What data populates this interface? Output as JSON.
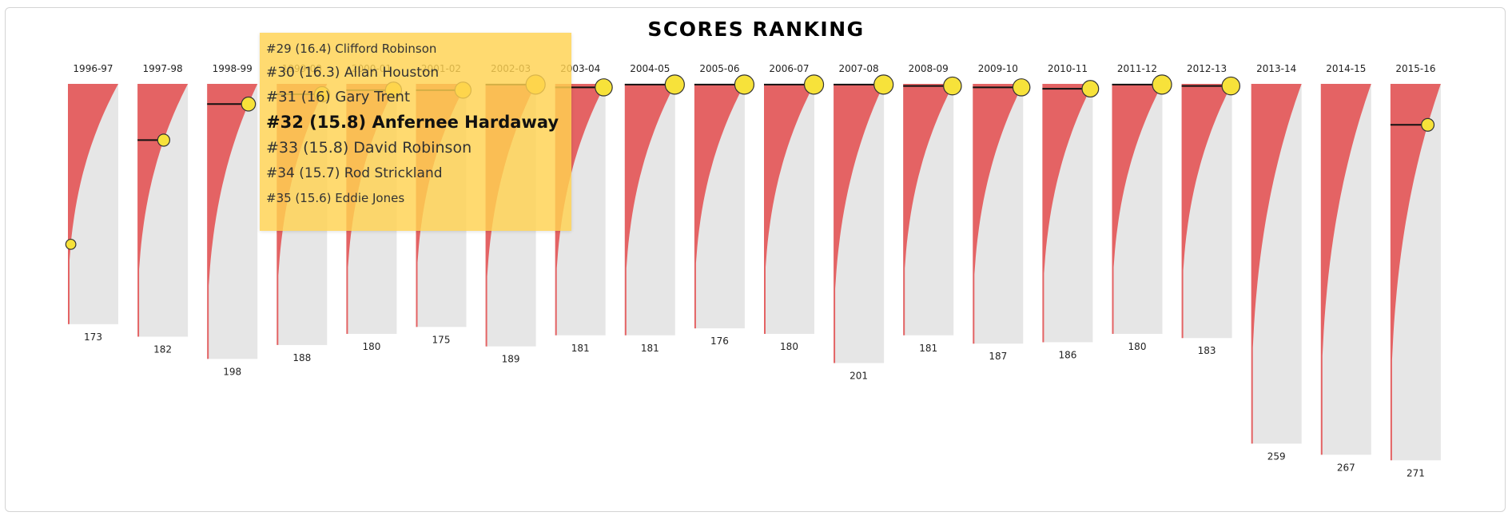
{
  "chart_data": {
    "type": "bar",
    "title": "SCORES RANKING",
    "colors": {
      "fill": "#e46364",
      "background": "#e6e6e6",
      "highlight": "#f7e23a",
      "highlight_stroke": "#333333"
    },
    "seasons": [
      {
        "label": "1996-97",
        "count": "173",
        "rank": 116
      },
      {
        "label": "1997-98",
        "count": "182",
        "rank": 41
      },
      {
        "label": "1998-99",
        "count": "198",
        "rank": 15
      },
      {
        "label": "1999-00",
        "count": "188",
        "rank": 8
      },
      {
        "label": "2000-01",
        "count": "180",
        "rank": 5
      },
      {
        "label": "2001-02",
        "count": "175",
        "rank": 5
      },
      {
        "label": "2002-03",
        "count": "189",
        "rank": 1
      },
      {
        "label": "2003-04",
        "count": "181",
        "rank": 3
      },
      {
        "label": "2004-05",
        "count": "181",
        "rank": 1
      },
      {
        "label": "2005-06",
        "count": "176",
        "rank": 1
      },
      {
        "label": "2006-07",
        "count": "180",
        "rank": 1
      },
      {
        "label": "2007-08",
        "count": "201",
        "rank": 1
      },
      {
        "label": "2008-09",
        "count": "181",
        "rank": 2
      },
      {
        "label": "2009-10",
        "count": "187",
        "rank": 3
      },
      {
        "label": "2010-11",
        "count": "186",
        "rank": 4
      },
      {
        "label": "2011-12",
        "count": "180",
        "rank": 1
      },
      {
        "label": "2012-13",
        "count": "183",
        "rank": 2
      },
      {
        "label": "2013-14",
        "count": "259",
        "rank": null
      },
      {
        "label": "2014-15",
        "count": "267",
        "rank": null
      },
      {
        "label": "2015-16",
        "count": "271",
        "rank": 30
      }
    ]
  },
  "tooltip": {
    "rows": [
      "#29 (16.4) Clifford Robinson",
      "#30 (16.3) Allan Houston",
      "#31 (16) Gary Trent",
      "#32 (15.8) Anfernee Hardaway",
      "#33 (15.8) David Robinson",
      "#34 (15.7) Rod Strickland",
      "#35 (15.6) Eddie Jones"
    ]
  }
}
